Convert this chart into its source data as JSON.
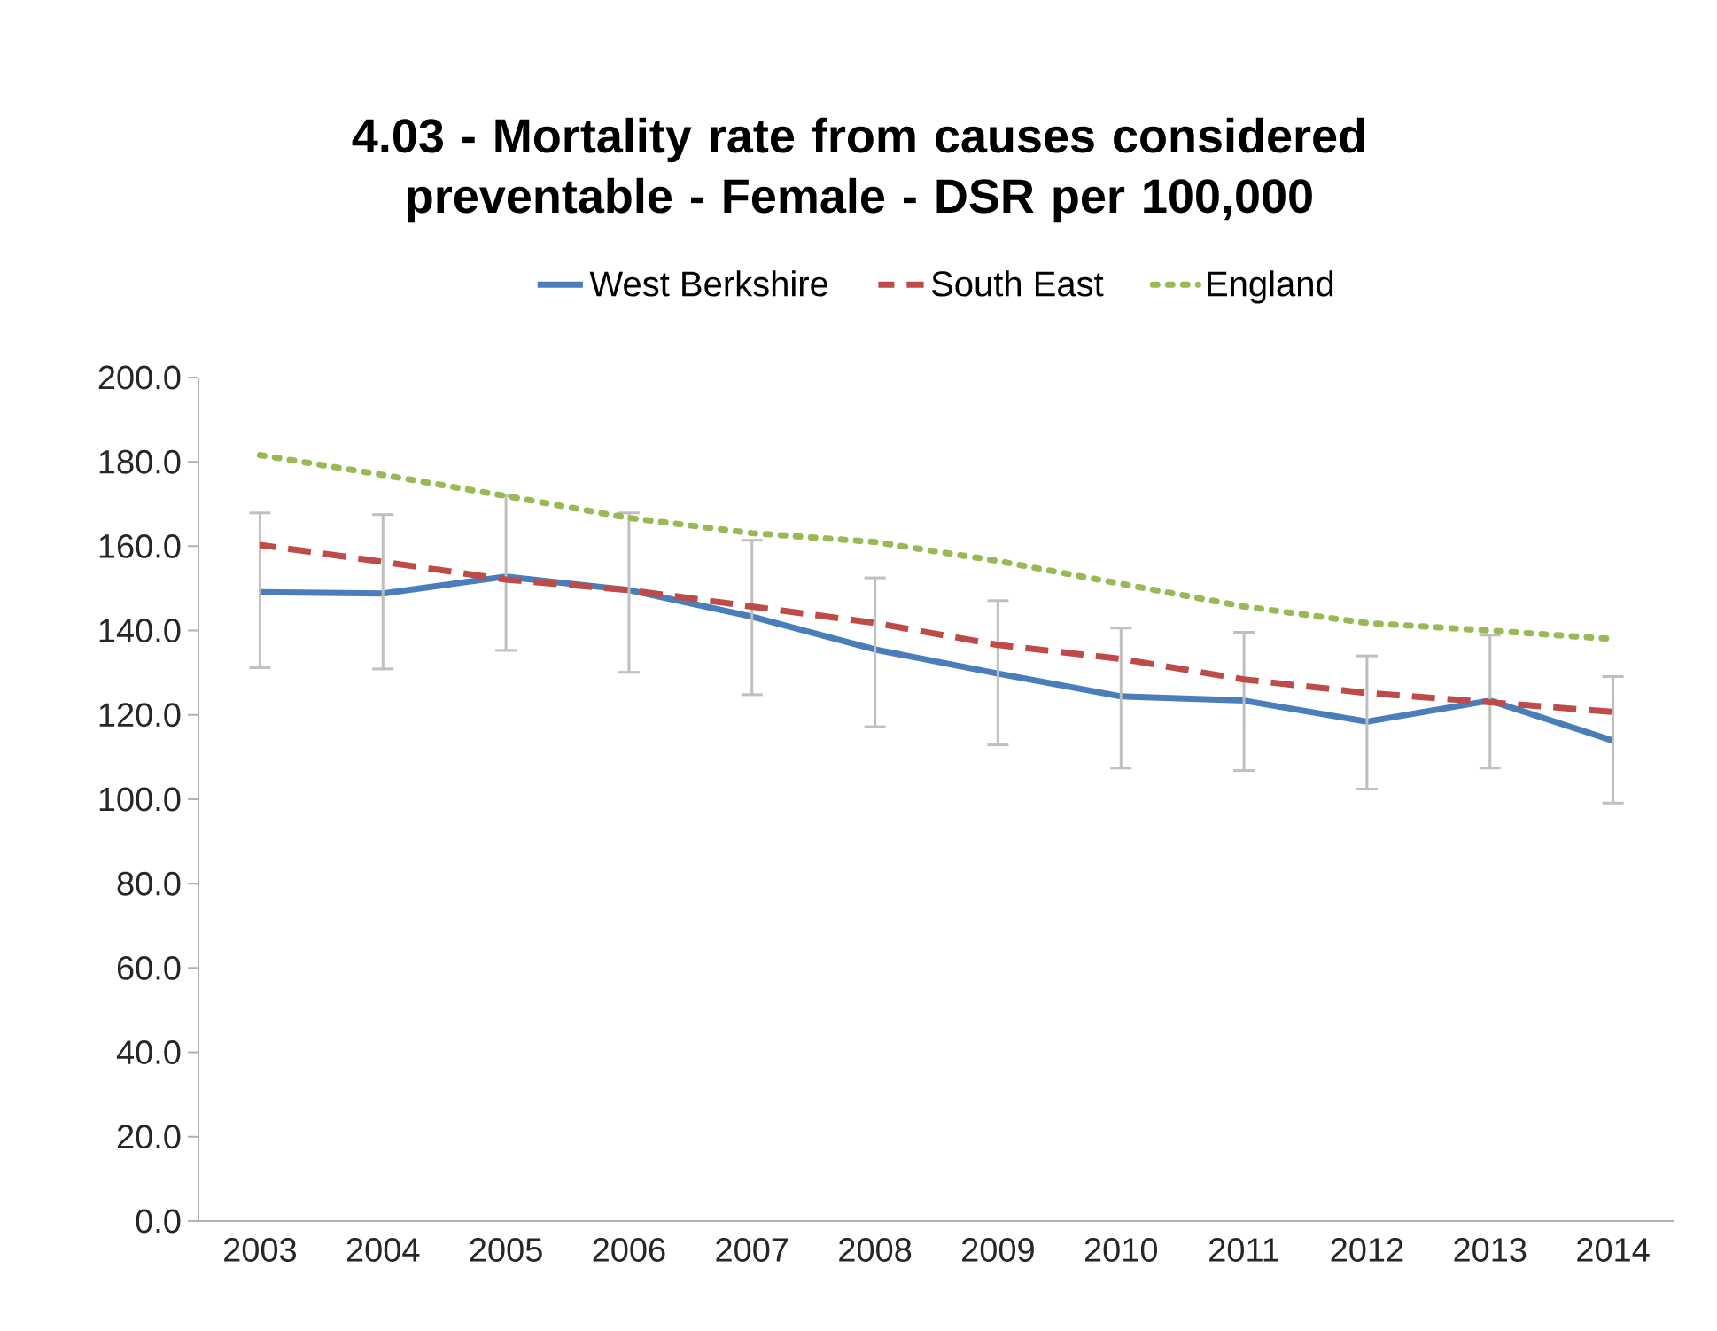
{
  "chart_data": {
    "type": "line",
    "title": "4.03 - Mortality rate from causes considered preventable - Female - DSR per 100,000",
    "categories": [
      "2003",
      "2004",
      "2005",
      "2006",
      "2007",
      "2008",
      "2009",
      "2010",
      "2011",
      "2012",
      "2013",
      "2014"
    ],
    "series": [
      {
        "name": "West Berkshire",
        "color": "#4a7ebb",
        "line_style": "solid",
        "values": [
          149.1,
          148.8,
          152.8,
          149.6,
          143.3,
          135.5,
          129.8,
          124.4,
          123.4,
          118.4,
          123.4,
          113.9
        ],
        "errors": [
          [
            131.2,
            167.9
          ],
          [
            130.9,
            167.5
          ],
          [
            135.3,
            171.9
          ],
          [
            130.1,
            167.9
          ],
          [
            124.8,
            161.4
          ],
          [
            117.2,
            152.5
          ],
          [
            112.9,
            147.1
          ],
          [
            107.4,
            140.6
          ],
          [
            106.8,
            139.6
          ],
          [
            102.4,
            134.0
          ],
          [
            107.4,
            138.9
          ],
          [
            99.1,
            129.1
          ]
        ]
      },
      {
        "name": "South East",
        "color": "#be4b48",
        "line_style": "dashed",
        "values": [
          160.3,
          156.3,
          152.1,
          149.6,
          145.7,
          141.8,
          136.6,
          133.3,
          128.4,
          125.2,
          123.0,
          120.7
        ]
      },
      {
        "name": "England",
        "color": "#98b954",
        "line_style": "dotted",
        "values": [
          181.6,
          176.9,
          171.9,
          166.7,
          163.1,
          161.0,
          156.5,
          151.1,
          145.7,
          141.8,
          140.0,
          138.0
        ]
      }
    ],
    "ylim": [
      0,
      200
    ],
    "yticks": [
      {
        "value": 0,
        "label": "0.0"
      },
      {
        "value": 20,
        "label": "20.0"
      },
      {
        "value": 40,
        "label": "40.0"
      },
      {
        "value": 60,
        "label": "60.0"
      },
      {
        "value": 80,
        "label": "80.0"
      },
      {
        "value": 100,
        "label": "100.0"
      },
      {
        "value": 120,
        "label": "120.0"
      },
      {
        "value": 140,
        "label": "140.0"
      },
      {
        "value": 160,
        "label": "160.0"
      },
      {
        "value": 180,
        "label": "180.0"
      },
      {
        "value": 200,
        "label": "200.0"
      }
    ],
    "grid": false,
    "legend": "top"
  }
}
